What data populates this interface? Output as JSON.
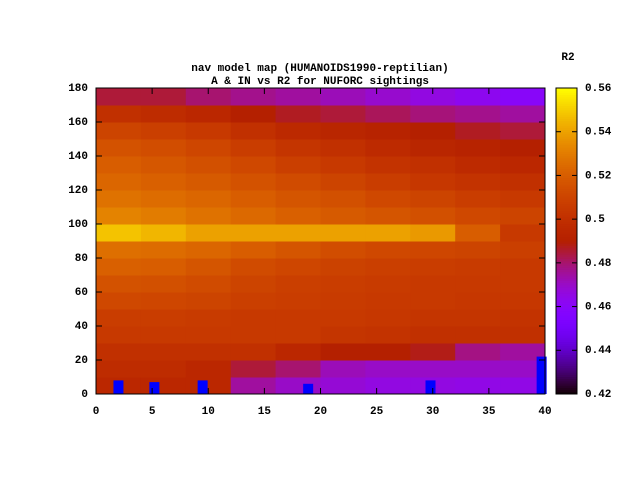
{
  "chart_data": {
    "type": "heatmap",
    "title": "nav model map (HUMANOIDS1990-reptilian)",
    "subtitle": "A & IN vs R2 for NUFORC sightings",
    "colorbar_label": "R2",
    "colormap": "gnuplot",
    "xbins": [
      0,
      4,
      8,
      12,
      16,
      20,
      24,
      28,
      32,
      36,
      40
    ],
    "ybins": [
      0,
      10,
      20,
      30,
      40,
      50,
      60,
      70,
      80,
      90,
      100,
      110,
      120,
      130,
      140,
      150,
      160,
      170,
      180
    ],
    "z": [
      [
        0.495,
        0.495,
        0.495,
        0.475,
        0.47,
        0.468,
        0.466,
        0.466,
        0.465,
        0.465
      ],
      [
        0.498,
        0.498,
        0.495,
        0.485,
        0.48,
        0.472,
        0.47,
        0.47,
        0.47,
        0.47
      ],
      [
        0.5,
        0.5,
        0.5,
        0.5,
        0.495,
        0.49,
        0.49,
        0.488,
        0.478,
        0.475
      ],
      [
        0.505,
        0.505,
        0.505,
        0.505,
        0.505,
        0.503,
        0.502,
        0.5,
        0.5,
        0.5
      ],
      [
        0.507,
        0.507,
        0.506,
        0.505,
        0.505,
        0.505,
        0.504,
        0.503,
        0.503,
        0.502
      ],
      [
        0.512,
        0.511,
        0.51,
        0.508,
        0.507,
        0.506,
        0.505,
        0.505,
        0.504,
        0.504
      ],
      [
        0.516,
        0.515,
        0.513,
        0.51,
        0.508,
        0.507,
        0.506,
        0.505,
        0.505,
        0.505
      ],
      [
        0.521,
        0.52,
        0.517,
        0.513,
        0.511,
        0.509,
        0.508,
        0.507,
        0.506,
        0.505
      ],
      [
        0.526,
        0.525,
        0.523,
        0.52,
        0.517,
        0.514,
        0.512,
        0.511,
        0.51,
        0.508
      ],
      [
        0.548,
        0.545,
        0.54,
        0.54,
        0.54,
        0.54,
        0.54,
        0.538,
        0.52,
        0.505
      ],
      [
        0.532,
        0.53,
        0.527,
        0.524,
        0.521,
        0.519,
        0.517,
        0.515,
        0.512,
        0.51
      ],
      [
        0.527,
        0.525,
        0.523,
        0.52,
        0.517,
        0.515,
        0.512,
        0.51,
        0.507,
        0.505
      ],
      [
        0.523,
        0.521,
        0.519,
        0.516,
        0.513,
        0.51,
        0.507,
        0.504,
        0.502,
        0.5
      ],
      [
        0.52,
        0.518,
        0.515,
        0.512,
        0.508,
        0.505,
        0.502,
        0.5,
        0.497,
        0.495
      ],
      [
        0.516,
        0.514,
        0.511,
        0.507,
        0.503,
        0.5,
        0.497,
        0.494,
        0.492,
        0.49
      ],
      [
        0.51,
        0.508,
        0.505,
        0.5,
        0.496,
        0.494,
        0.492,
        0.49,
        0.487,
        0.485
      ],
      [
        0.5,
        0.498,
        0.495,
        0.49,
        0.487,
        0.485,
        0.482,
        0.479,
        0.477,
        0.475
      ],
      [
        0.485,
        0.485,
        0.48,
        0.477,
        0.475,
        0.472,
        0.469,
        0.466,
        0.463,
        0.46
      ]
    ],
    "markers": {
      "color": "#0000ff",
      "x": [
        2,
        5.2,
        9.5,
        18.9,
        29.8,
        39.7
      ],
      "y": [
        8,
        7,
        8,
        6,
        8,
        22
      ]
    },
    "xlim": [
      0,
      40
    ],
    "xticks": [
      0,
      5,
      10,
      15,
      20,
      25,
      30,
      35,
      40
    ],
    "ylim": [
      0,
      180
    ],
    "yticks": [
      0,
      20,
      40,
      60,
      80,
      100,
      120,
      140,
      160,
      180
    ],
    "zlim": [
      0.42,
      0.56
    ],
    "zticks": [
      0.42,
      0.44,
      0.46,
      0.48,
      0.5,
      0.52,
      0.54,
      0.56
    ]
  }
}
